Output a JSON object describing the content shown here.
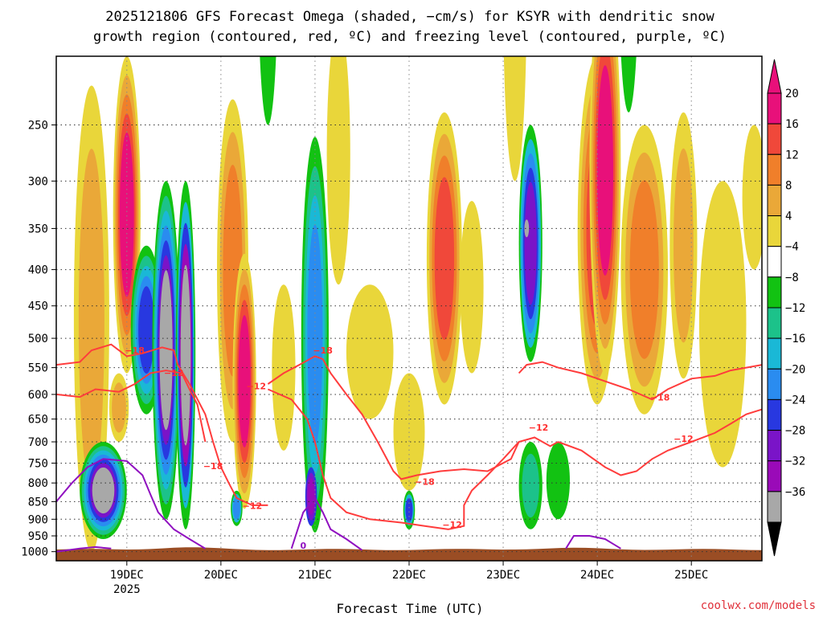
{
  "chart_data": {
    "type": "heatmap",
    "title_line1": "2025121806 GFS Forecast Omega (shaded, −cm/s) for KSYR with dendritic snow",
    "title_line2": "growth region (contoured, red, ºC) and freezing level (contoured, purple, ºC)",
    "xlabel": "Forecast Time (UTC)",
    "ylabel": "",
    "credit": "coolwx.com/models",
    "y_axis": {
      "scale": "pressure",
      "ticks": [
        250,
        300,
        350,
        400,
        450,
        500,
        550,
        600,
        650,
        700,
        750,
        800,
        850,
        900,
        950,
        1000
      ],
      "range": [
        200,
        1030
      ]
    },
    "x_axis": {
      "ticks": [
        {
          "label": "19DEC",
          "sub": "2025",
          "hours": 18
        },
        {
          "label": "20DEC",
          "sub": "",
          "hours": 42
        },
        {
          "label": "21DEC",
          "sub": "",
          "hours": 66
        },
        {
          "label": "22DEC",
          "sub": "",
          "hours": 90
        },
        {
          "label": "23DEC",
          "sub": "",
          "hours": 114
        },
        {
          "label": "24DEC",
          "sub": "",
          "hours": 138
        },
        {
          "label": "25DEC",
          "sub": "",
          "hours": 162
        }
      ],
      "range_hours": [
        0,
        180
      ]
    },
    "colorbar": {
      "labels": [
        "20",
        "16",
        "12",
        "8",
        "4",
        "−4",
        "−8",
        "−12",
        "−16",
        "−20",
        "−24",
        "−28",
        "−32",
        "−36"
      ],
      "bins": [
        {
          "color": "#e8107a"
        },
        {
          "color": "#f0483a"
        },
        {
          "color": "#f07f2a"
        },
        {
          "color": "#eaa838"
        },
        {
          "color": "#e9d63a"
        },
        {
          "color": "#ffffff"
        },
        {
          "color": "#12c212"
        },
        {
          "color": "#1cc28a"
        },
        {
          "color": "#1ab8d6"
        },
        {
          "color": "#2a8cf0"
        },
        {
          "color": "#2838e0"
        },
        {
          "color": "#7a14c8"
        },
        {
          "color": "#9a0ab8"
        },
        {
          "color": "#a8a8a8"
        }
      ]
    },
    "contours": {
      "dgz_color": "#ff3c3c",
      "freezing_color": "#9010c0",
      "labels": [
        {
          "text": "−18",
          "hours": 20,
          "p": 525,
          "kind": "dgz"
        },
        {
          "text": "−12",
          "hours": 30,
          "p": 565,
          "kind": "dgz"
        },
        {
          "text": "−18",
          "hours": 40,
          "p": 765,
          "kind": "dgz"
        },
        {
          "text": "−12",
          "hours": 51,
          "p": 590,
          "kind": "dgz"
        },
        {
          "text": "−12",
          "hours": 50,
          "p": 870,
          "kind": "dgz"
        },
        {
          "text": "−18",
          "hours": 68,
          "p": 525,
          "kind": "dgz"
        },
        {
          "text": "−18",
          "hours": 94,
          "p": 805,
          "kind": "dgz"
        },
        {
          "text": "−12",
          "hours": 101,
          "p": 925,
          "kind": "dgz"
        },
        {
          "text": "−12",
          "hours": 123,
          "p": 675,
          "kind": "dgz"
        },
        {
          "text": "−18",
          "hours": 154,
          "p": 612,
          "kind": "dgz"
        },
        {
          "text": "−12",
          "hours": 160,
          "p": 700,
          "kind": "dgz"
        },
        {
          "text": "0",
          "hours": 63,
          "p": 990,
          "kind": "freezing"
        }
      ]
    },
    "grid": true,
    "legend": "colorbar-right"
  }
}
